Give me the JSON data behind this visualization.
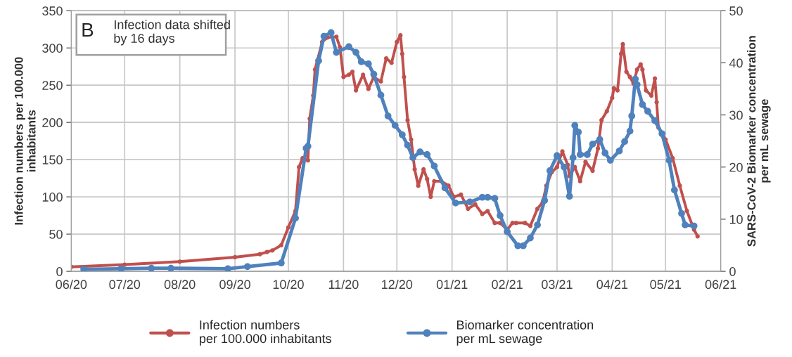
{
  "chart_data": {
    "type": "line",
    "ylabel": "Infection numbers per 100.000\ninhabitants",
    "y2label": "SARS-CoV-2 Biomarker concentration\nper mL sewage",
    "annotations": [
      "B",
      "Infection data shifted\nby 16 days"
    ],
    "xlim": [
      "2020-06-01",
      "2021-06-01"
    ],
    "xticks": [
      {
        "value": "2020-06-01",
        "label": "06/20"
      },
      {
        "value": "2020-07-01",
        "label": "07/20"
      },
      {
        "value": "2020-08-01",
        "label": "08/20"
      },
      {
        "value": "2020-09-01",
        "label": "09/20"
      },
      {
        "value": "2020-10-01",
        "label": "10/20"
      },
      {
        "value": "2020-11-01",
        "label": "11/20"
      },
      {
        "value": "2020-12-01",
        "label": "12/20"
      },
      {
        "value": "2021-01-01",
        "label": "01/21"
      },
      {
        "value": "2021-02-01",
        "label": "02/21"
      },
      {
        "value": "2021-03-01",
        "label": "03/21"
      },
      {
        "value": "2021-04-01",
        "label": "04/21"
      },
      {
        "value": "2021-05-01",
        "label": "05/21"
      },
      {
        "value": "2021-06-01",
        "label": "06/21"
      }
    ],
    "ylim": [
      0,
      350
    ],
    "yticks": [
      0,
      50,
      100,
      150,
      200,
      250,
      300,
      350
    ],
    "y2lim": [
      0,
      50
    ],
    "y2ticks": [
      0,
      10,
      20,
      30,
      40,
      50
    ],
    "grid": true,
    "legend": "bottom",
    "marker": "circle",
    "line_style": "solid",
    "series": [
      {
        "name": "Infection numbers\nper 100.000 inhabitants",
        "color": "#c0504d",
        "x": [
          "2020-06-01",
          "2020-07-01",
          "2020-08-01",
          "2020-09-01",
          "2020-09-15",
          "2020-09-19",
          "2020-09-22",
          "2020-09-27",
          "2020-10-01",
          "2020-10-05",
          "2020-10-07",
          "2020-10-09",
          "2020-10-12",
          "2020-10-13",
          "2020-10-15",
          "2020-10-16",
          "2020-10-20",
          "2020-10-23",
          "2020-10-28",
          "2020-10-30",
          "2020-11-01",
          "2020-11-04",
          "2020-11-06",
          "2020-11-08",
          "2020-11-12",
          "2020-11-15",
          "2020-11-18",
          "2020-11-22",
          "2020-11-25",
          "2020-11-28",
          "2020-12-01",
          "2020-12-03",
          "2020-12-04",
          "2020-12-05",
          "2020-12-07",
          "2020-12-09",
          "2020-12-11",
          "2020-12-13",
          "2020-12-16",
          "2020-12-18",
          "2020-12-20",
          "2020-12-22",
          "2020-12-26",
          "2020-12-30",
          "2021-01-02",
          "2021-01-06",
          "2021-01-10",
          "2021-01-14",
          "2021-01-18",
          "2021-01-21",
          "2021-01-25",
          "2021-01-28",
          "2021-02-01",
          "2021-02-04",
          "2021-02-06",
          "2021-02-11",
          "2021-02-14",
          "2021-02-18",
          "2021-02-21",
          "2021-02-23",
          "2021-02-26",
          "2021-03-01",
          "2021-03-04",
          "2021-03-07",
          "2021-03-08",
          "2021-03-11",
          "2021-03-14",
          "2021-03-17",
          "2021-03-21",
          "2021-03-24",
          "2021-03-26",
          "2021-03-29",
          "2021-04-01",
          "2021-04-02",
          "2021-04-04",
          "2021-04-06",
          "2021-04-07",
          "2021-04-09",
          "2021-04-11",
          "2021-04-13",
          "2021-04-15",
          "2021-04-17",
          "2021-04-18",
          "2021-04-20",
          "2021-04-23",
          "2021-04-25",
          "2021-04-26",
          "2021-04-27",
          "2021-05-01",
          "2021-05-05",
          "2021-05-09",
          "2021-05-13",
          "2021-05-17",
          "2021-05-19"
        ],
        "values": [
          6,
          9,
          13,
          19,
          23,
          26,
          28,
          35,
          59,
          81,
          140,
          152,
          149,
          205,
          236,
          271,
          308,
          314,
          315,
          301,
          261,
          264,
          268,
          243,
          264,
          245,
          261,
          255,
          286,
          280,
          308,
          317,
          292,
          261,
          203,
          177,
          137,
          115,
          137,
          124,
          100,
          121,
          121,
          115,
          100,
          103,
          84,
          90,
          77,
          81,
          65,
          65,
          56,
          65,
          65,
          65,
          61,
          84,
          93,
          115,
          133,
          140,
          161,
          143,
          128,
          140,
          121,
          147,
          135,
          165,
          203,
          215,
          233,
          246,
          243,
          292,
          305,
          268,
          261,
          252,
          271,
          278,
          271,
          243,
          236,
          259,
          227,
          193,
          177,
          152,
          115,
          81,
          56,
          47
        ]
      },
      {
        "name": "Biomarker concentration\nper mL sewage",
        "color": "#4f81bd",
        "axis": "y2",
        "x": [
          "2020-06-08",
          "2020-06-29",
          "2020-07-16",
          "2020-07-27",
          "2020-08-28",
          "2020-09-08",
          "2020-09-27",
          "2020-10-05",
          "2020-10-11",
          "2020-10-12",
          "2020-10-18",
          "2020-10-21",
          "2020-10-25",
          "2020-10-28",
          "2020-11-04",
          "2020-11-08",
          "2020-11-11",
          "2020-11-15",
          "2020-11-18",
          "2020-11-22",
          "2020-11-26",
          "2020-11-30",
          "2020-12-04",
          "2020-12-07",
          "2020-12-10",
          "2020-12-14",
          "2020-12-18",
          "2020-12-22",
          "2020-12-28",
          "2021-01-03",
          "2021-01-11",
          "2021-01-18",
          "2021-01-21",
          "2021-01-25",
          "2021-01-28",
          "2021-02-01",
          "2021-02-07",
          "2021-02-10",
          "2021-02-14",
          "2021-02-18",
          "2021-02-22",
          "2021-02-25",
          "2021-03-01",
          "2021-03-05",
          "2021-03-08",
          "2021-03-10",
          "2021-03-11",
          "2021-03-13",
          "2021-03-14",
          "2021-03-18",
          "2021-03-21",
          "2021-03-25",
          "2021-03-28",
          "2021-03-31",
          "2021-04-05",
          "2021-04-08",
          "2021-04-11",
          "2021-04-12",
          "2021-04-14",
          "2021-04-15",
          "2021-04-18",
          "2021-04-21",
          "2021-04-25",
          "2021-04-29",
          "2021-05-03",
          "2021-05-06",
          "2021-05-10",
          "2021-05-12",
          "2021-05-17"
        ],
        "values": [
          0.4,
          0.5,
          0.6,
          0.6,
          0.5,
          0.9,
          1.6,
          10.2,
          23.6,
          24,
          40.4,
          45.1,
          45.8,
          42,
          43.1,
          42,
          40.2,
          39.8,
          37.8,
          33.8,
          29.8,
          28,
          26.2,
          24.2,
          21.8,
          22.9,
          22.4,
          20.2,
          16,
          13.1,
          13.3,
          14.2,
          14.2,
          14,
          10.7,
          7.6,
          4.9,
          4.9,
          6.4,
          8.9,
          13.6,
          19.3,
          22.2,
          20,
          14.4,
          21.8,
          28,
          26.7,
          22.4,
          22.4,
          24.4,
          25.3,
          22.7,
          21.3,
          23.1,
          24.9,
          26.9,
          29.8,
          36.9,
          35.8,
          32,
          30.7,
          28.9,
          26.4,
          21.3,
          15.6,
          11.1,
          8.9,
          8.7
        ]
      }
    ]
  }
}
